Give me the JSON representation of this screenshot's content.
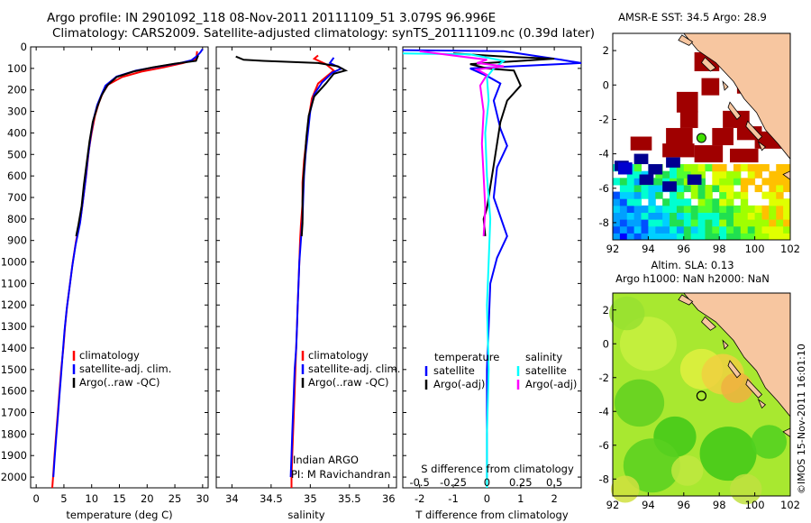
{
  "header": {
    "line1": "Argo profile: IN 2901092_118 08-Nov-2011 20111109_51 3.079S 96.996E",
    "line2": "Climatology: CARS2009. Satellite-adjusted climatology: synTS_20111109.nc (0.39d later)"
  },
  "colors": {
    "climatology": "#ff0000",
    "satellite": "#0000ff",
    "argo": "#000000",
    "cyan": "#00ffff",
    "magenta": "#ff00ff",
    "land": "#f7c6a0",
    "masked": "#a00000"
  },
  "chart_data": [
    {
      "type": "line",
      "id": "temperature",
      "xlabel": "temperature (deg C)",
      "ylabel": "",
      "xlim": [
        -1,
        31
      ],
      "ylim": [
        2050,
        0
      ],
      "xticks": [
        0,
        5,
        10,
        15,
        20,
        25,
        30
      ],
      "yticks": [
        0,
        100,
        200,
        300,
        400,
        500,
        600,
        700,
        800,
        900,
        1000,
        1100,
        1200,
        1300,
        1400,
        1500,
        1600,
        1700,
        1800,
        1900,
        2000
      ],
      "legend": [
        "climatology",
        "satellite-adj. clim.",
        "Argo(..raw -QC)"
      ],
      "legend_position": "bottom-right",
      "series": [
        {
          "name": "climatology",
          "color": "red",
          "points": [
            [
              29,
              20
            ],
            [
              28.9,
              45
            ],
            [
              28.5,
              60
            ],
            [
              26.5,
              75
            ],
            [
              23,
              95
            ],
            [
              19,
              115
            ],
            [
              15.5,
              140
            ],
            [
              13,
              175
            ],
            [
              12,
              215
            ],
            [
              11.3,
              260
            ],
            [
              10.6,
              320
            ],
            [
              10,
              400
            ],
            [
              9.5,
              480
            ],
            [
              9,
              600
            ],
            [
              8.5,
              700
            ],
            [
              8,
              800
            ],
            [
              7.2,
              900
            ],
            [
              6.6,
              1000
            ],
            [
              6.1,
              1100
            ],
            [
              5.6,
              1200
            ],
            [
              5.2,
              1300
            ],
            [
              4.9,
              1400
            ],
            [
              4.5,
              1500
            ],
            [
              4.2,
              1600
            ],
            [
              3.9,
              1700
            ],
            [
              3.6,
              1800
            ],
            [
              3.3,
              1900
            ],
            [
              3.05,
              2000
            ],
            [
              2.9,
              2050
            ]
          ]
        },
        {
          "name": "satellite",
          "color": "blue",
          "points": [
            [
              30,
              10
            ],
            [
              29.6,
              25
            ],
            [
              29,
              42
            ],
            [
              28,
              62
            ],
            [
              26,
              75
            ],
            [
              22,
              92
            ],
            [
              18,
              110
            ],
            [
              14.5,
              138
            ],
            [
              12.5,
              180
            ],
            [
              11.8,
              220
            ],
            [
              11,
              270
            ],
            [
              10.3,
              340
            ],
            [
              9.8,
              420
            ],
            [
              9.3,
              520
            ],
            [
              8.9,
              620
            ],
            [
              8.4,
              720
            ],
            [
              7.9,
              820
            ],
            [
              7.1,
              920
            ],
            [
              6.5,
              1020
            ],
            [
              6,
              1120
            ],
            [
              5.5,
              1220
            ],
            [
              5.1,
              1320
            ],
            [
              4.8,
              1420
            ],
            [
              4.5,
              1520
            ],
            [
              4.2,
              1620
            ],
            [
              3.9,
              1720
            ],
            [
              3.6,
              1820
            ],
            [
              3.3,
              1920
            ],
            [
              3.1,
              2000
            ]
          ]
        },
        {
          "name": "Argo",
          "color": "black",
          "points": [
            [
              29.2,
              40
            ],
            [
              28.8,
              65
            ],
            [
              25,
              78
            ],
            [
              21,
              95
            ],
            [
              17.5,
              115
            ],
            [
              14.5,
              140
            ],
            [
              12.8,
              180
            ],
            [
              11.8,
              225
            ],
            [
              11,
              280
            ],
            [
              10.2,
              350
            ],
            [
              9.6,
              440
            ],
            [
              9.1,
              540
            ],
            [
              8.6,
              640
            ],
            [
              8.2,
              740
            ],
            [
              7.6,
              830
            ],
            [
              7.2,
              880
            ]
          ]
        }
      ]
    },
    {
      "type": "line",
      "id": "salinity",
      "xlabel": "salinity",
      "xlim": [
        33.8,
        36.1
      ],
      "ylim": [
        2050,
        0
      ],
      "xticks": [
        34,
        34.5,
        35,
        35.5,
        36
      ],
      "legend": [
        "climatology",
        "satellite-adj. clim.",
        "Argo(..raw -QC)"
      ],
      "legend_position": "bottom-right",
      "annotation_lines": [
        "Indian ARGO",
        "PI: M Ravichandran"
      ],
      "series": [
        {
          "name": "climatology",
          "color": "red",
          "points": [
            [
              35.1,
              40
            ],
            [
              35.05,
              55
            ],
            [
              35.2,
              80
            ],
            [
              35.3,
              110
            ],
            [
              35.1,
              170
            ],
            [
              35.02,
              240
            ],
            [
              34.98,
              330
            ],
            [
              34.95,
              430
            ],
            [
              34.92,
              530
            ],
            [
              34.9,
              630
            ],
            [
              34.9,
              730
            ],
            [
              34.88,
              830
            ],
            [
              34.87,
              900
            ],
            [
              34.86,
              1000
            ],
            [
              34.85,
              1100
            ],
            [
              34.84,
              1200
            ],
            [
              34.83,
              1300
            ],
            [
              34.82,
              1400
            ],
            [
              34.81,
              1500
            ],
            [
              34.8,
              1600
            ],
            [
              34.79,
              1700
            ],
            [
              34.78,
              1800
            ],
            [
              34.77,
              1900
            ],
            [
              34.76,
              2000
            ],
            [
              34.76,
              2050
            ]
          ]
        },
        {
          "name": "satellite",
          "color": "blue",
          "points": [
            [
              35.3,
              50
            ],
            [
              35.25,
              75
            ],
            [
              35.4,
              100
            ],
            [
              35.28,
              120
            ],
            [
              35.15,
              165
            ],
            [
              35.05,
              220
            ],
            [
              35,
              300
            ],
            [
              34.97,
              400
            ],
            [
              34.94,
              500
            ],
            [
              34.92,
              600
            ],
            [
              34.91,
              700
            ],
            [
              34.9,
              800
            ],
            [
              34.88,
              900
            ],
            [
              34.86,
              1000
            ],
            [
              34.85,
              1100
            ],
            [
              34.84,
              1200
            ],
            [
              34.83,
              1300
            ],
            [
              34.82,
              1400
            ],
            [
              34.8,
              1500
            ],
            [
              34.79,
              1600
            ],
            [
              34.78,
              1700
            ],
            [
              34.77,
              1800
            ],
            [
              34.76,
              1900
            ],
            [
              34.75,
              2000
            ]
          ]
        },
        {
          "name": "Argo",
          "color": "black",
          "points": [
            [
              34.05,
              45
            ],
            [
              34.15,
              60
            ],
            [
              34.4,
              65
            ],
            [
              35.1,
              75
            ],
            [
              35.35,
              90
            ],
            [
              35.45,
              110
            ],
            [
              35.3,
              125
            ],
            [
              35.2,
              170
            ],
            [
              35.05,
              230
            ],
            [
              34.98,
              320
            ],
            [
              34.95,
              420
            ],
            [
              34.93,
              520
            ],
            [
              34.91,
              620
            ],
            [
              34.9,
              720
            ],
            [
              34.9,
              820
            ],
            [
              34.89,
              880
            ]
          ]
        }
      ]
    },
    {
      "type": "line",
      "id": "difference",
      "xlabel": "T difference from climatology",
      "xlabel2": "S difference from climatology",
      "xlim": [
        -2.5,
        2.8
      ],
      "ylim": [
        2050,
        0
      ],
      "xticks": [
        -2,
        -1,
        0,
        1,
        2
      ],
      "xticks_s": [
        -0.5,
        -0.25,
        0,
        0.25,
        0.5
      ],
      "xticks_s_labels": [
        "-0.5",
        "-0.25",
        "0",
        "0.25",
        "0.5"
      ],
      "legend_temperature_title": "temperature",
      "legend_salinity_title": "salinity",
      "legend_temperature": [
        "satellite",
        "Argo(-adj)"
      ],
      "legend_salinity": [
        "satellite",
        "Argo(-adj)"
      ],
      "series": [
        {
          "name": "temperature satellite",
          "color": "blue",
          "points": [
            [
              -2.5,
              15
            ],
            [
              0.5,
              20
            ],
            [
              2.2,
              60
            ],
            [
              2.8,
              75
            ],
            [
              -0.5,
              100
            ],
            [
              0,
              135
            ],
            [
              0.4,
              170
            ],
            [
              0.2,
              250
            ],
            [
              0.4,
              380
            ],
            [
              0.6,
              460
            ],
            [
              0.3,
              560
            ],
            [
              0.2,
              700
            ],
            [
              0.6,
              880
            ],
            [
              0.3,
              980
            ],
            [
              0.1,
              1100
            ],
            [
              0.05,
              1300
            ],
            [
              0,
              1500
            ],
            [
              0,
              1800
            ],
            [
              0,
              2000
            ]
          ]
        },
        {
          "name": "temperature Argo",
          "color": "black",
          "points": [
            [
              -1,
              30
            ],
            [
              0.5,
              45
            ],
            [
              2,
              55
            ],
            [
              -0.5,
              80
            ],
            [
              0,
              100
            ],
            [
              0.8,
              110
            ],
            [
              1,
              180
            ],
            [
              0.6,
              250
            ],
            [
              0.4,
              350
            ],
            [
              0.3,
              450
            ],
            [
              0.2,
              550
            ],
            [
              0.1,
              650
            ],
            [
              0,
              750
            ],
            [
              -0.1,
              800
            ],
            [
              -0.05,
              880
            ]
          ]
        },
        {
          "name": "salinity satellite",
          "color": "cyan",
          "points": [
            [
              -2.5,
              30
            ],
            [
              -0.5,
              35
            ],
            [
              0.5,
              65
            ],
            [
              0.2,
              100
            ],
            [
              0,
              140
            ],
            [
              0.05,
              250
            ],
            [
              -0.05,
              400
            ],
            [
              0,
              600
            ],
            [
              0.1,
              800
            ],
            [
              0.05,
              1000
            ],
            [
              0,
              1200
            ],
            [
              0.05,
              1500
            ],
            [
              0,
              1800
            ],
            [
              0,
              2050
            ]
          ]
        },
        {
          "name": "salinity Argo",
          "color": "magenta",
          "points": [
            [
              -2,
              20
            ],
            [
              0,
              60
            ],
            [
              -0.3,
              75
            ],
            [
              0.5,
              90
            ],
            [
              -0.3,
              105
            ],
            [
              0,
              130
            ],
            [
              -0.2,
              180
            ],
            [
              -0.1,
              300
            ],
            [
              -0.15,
              450
            ],
            [
              -0.1,
              600
            ],
            [
              -0.05,
              750
            ],
            [
              -0.1,
              880
            ]
          ]
        }
      ]
    },
    {
      "type": "heatmap",
      "id": "sst-map",
      "title": "AMSR-E SST: 34.5 Argo: 28.9",
      "xlim": [
        92,
        102
      ],
      "ylim": [
        -9,
        3
      ],
      "xticks": [
        92,
        94,
        96,
        98,
        100,
        102
      ],
      "yticks": [
        -8,
        -6,
        -4,
        -2,
        0,
        2
      ],
      "float_position": [
        96.996,
        -3.079
      ],
      "float_marker": "green"
    },
    {
      "type": "heatmap",
      "id": "sla-map",
      "title_line1": "Altim. SLA: 0.13",
      "title_line2": "Argo h1000: NaN h2000: NaN",
      "xlim": [
        92,
        102
      ],
      "ylim": [
        -9,
        3
      ],
      "xticks": [
        92,
        94,
        96,
        98,
        100,
        102
      ],
      "yticks": [
        -8,
        -6,
        -4,
        -2,
        0,
        2
      ],
      "float_position": [
        96.996,
        -3.079
      ],
      "float_marker": "open circle"
    }
  ],
  "footer": {
    "credit": "©IMOS 15-Nov-2011 16:01:10"
  }
}
